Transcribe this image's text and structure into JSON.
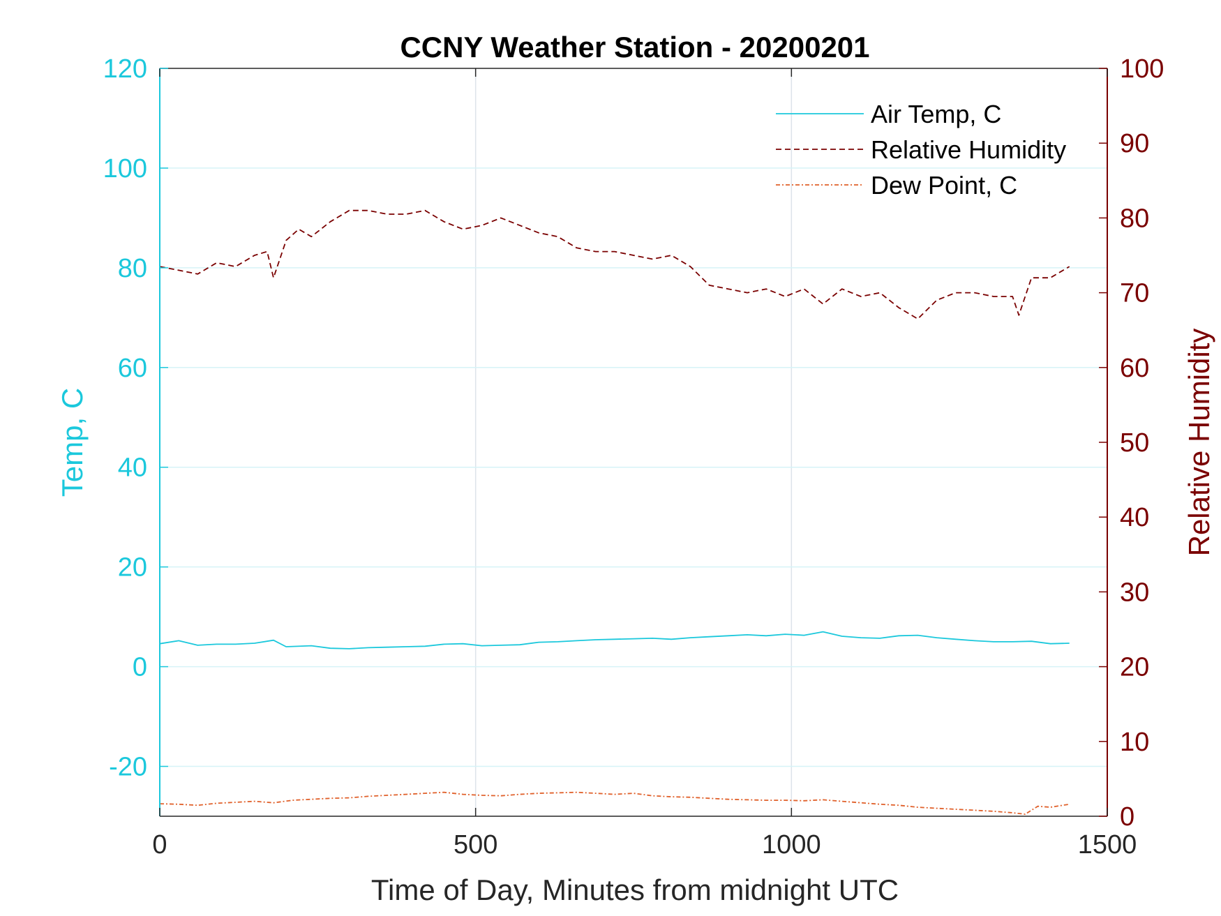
{
  "chart_data": {
    "type": "line",
    "title": "CCNY Weather Station - 20200201",
    "xlabel": "Time of Day, Minutes from midnight UTC",
    "ylabel_left": "Temp, C",
    "ylabel_right": "Relative Humidity",
    "xlim": [
      0,
      1500
    ],
    "ylim_left": [
      -30,
      120
    ],
    "ylim_right": [
      0,
      100
    ],
    "xticks": [
      0,
      500,
      1000,
      1500
    ],
    "yticks_left": [
      -20,
      0,
      20,
      40,
      60,
      80,
      100,
      120
    ],
    "yticks_right": [
      0,
      10,
      20,
      30,
      40,
      50,
      60,
      70,
      80,
      90,
      100
    ],
    "grid": true,
    "legend_position": "top-right",
    "colors": {
      "left_axis": "#1bc8dc",
      "right_axis": "#7a0000",
      "air_temp": "#1bc8dc",
      "humidity": "#7a0000",
      "dew_point": "#e0602a"
    },
    "series": [
      {
        "name": "Air Temp, C",
        "axis": "left",
        "style": "solid",
        "x": [
          0,
          30,
          60,
          90,
          120,
          150,
          180,
          200,
          240,
          270,
          300,
          330,
          360,
          390,
          420,
          450,
          480,
          510,
          540,
          570,
          600,
          630,
          660,
          690,
          720,
          750,
          780,
          810,
          840,
          870,
          900,
          930,
          960,
          990,
          1020,
          1050,
          1080,
          1110,
          1140,
          1170,
          1200,
          1230,
          1260,
          1290,
          1320,
          1350,
          1380,
          1410,
          1440
        ],
        "y": [
          4.6,
          5.2,
          4.3,
          4.5,
          4.5,
          4.7,
          5.3,
          4.0,
          4.2,
          3.7,
          3.6,
          3.8,
          3.9,
          4.0,
          4.1,
          4.5,
          4.6,
          4.2,
          4.3,
          4.4,
          4.9,
          5.0,
          5.2,
          5.4,
          5.5,
          5.6,
          5.7,
          5.5,
          5.8,
          6.0,
          6.2,
          6.4,
          6.2,
          6.5,
          6.3,
          7.0,
          6.1,
          5.8,
          5.7,
          6.2,
          6.3,
          5.8,
          5.5,
          5.2,
          5.0,
          5.0,
          5.1,
          4.6,
          4.7
        ]
      },
      {
        "name": "Relative Humidity",
        "axis": "right",
        "style": "dashed",
        "x": [
          0,
          30,
          60,
          90,
          120,
          150,
          170,
          180,
          200,
          220,
          240,
          270,
          300,
          330,
          360,
          390,
          420,
          450,
          480,
          510,
          540,
          570,
          600,
          630,
          660,
          690,
          720,
          750,
          780,
          810,
          840,
          870,
          900,
          930,
          960,
          990,
          1020,
          1050,
          1080,
          1110,
          1140,
          1170,
          1200,
          1230,
          1260,
          1290,
          1320,
          1350,
          1360,
          1380,
          1410,
          1440
        ],
        "y": [
          73.5,
          73.0,
          72.5,
          74.0,
          73.5,
          75.0,
          75.5,
          72.0,
          77.0,
          78.5,
          77.5,
          79.5,
          81.0,
          81.0,
          80.5,
          80.5,
          81.0,
          79.5,
          78.5,
          79.0,
          80.0,
          79.0,
          78.0,
          77.5,
          76.0,
          75.5,
          75.5,
          75.0,
          74.5,
          75.0,
          73.5,
          71.0,
          70.5,
          70.0,
          70.5,
          69.5,
          70.5,
          68.5,
          70.5,
          69.5,
          70.0,
          68.0,
          66.5,
          69.0,
          70.0,
          70.0,
          69.5,
          69.5,
          67.0,
          72.0,
          72.0,
          73.5
        ]
      },
      {
        "name": "Dew Point, C",
        "axis": "left",
        "style": "dash-dot",
        "x": [
          0,
          30,
          60,
          90,
          120,
          150,
          180,
          210,
          240,
          270,
          300,
          330,
          360,
          390,
          420,
          450,
          480,
          510,
          540,
          570,
          600,
          630,
          660,
          690,
          720,
          750,
          780,
          810,
          840,
          870,
          900,
          930,
          960,
          990,
          1020,
          1050,
          1080,
          1110,
          1140,
          1170,
          1200,
          1230,
          1260,
          1290,
          1320,
          1350,
          1370,
          1390,
          1410,
          1440
        ],
        "y": [
          -27.5,
          -27.6,
          -27.8,
          -27.4,
          -27.2,
          -27.0,
          -27.3,
          -26.8,
          -26.6,
          -26.4,
          -26.3,
          -26.0,
          -25.8,
          -25.6,
          -25.4,
          -25.2,
          -25.6,
          -25.8,
          -25.9,
          -25.6,
          -25.4,
          -25.3,
          -25.2,
          -25.4,
          -25.6,
          -25.4,
          -25.9,
          -26.1,
          -26.2,
          -26.4,
          -26.6,
          -26.7,
          -26.8,
          -26.8,
          -26.9,
          -26.7,
          -27.0,
          -27.3,
          -27.6,
          -27.8,
          -28.2,
          -28.4,
          -28.6,
          -28.8,
          -29.0,
          -29.3,
          -29.6,
          -28.0,
          -28.2,
          -27.6
        ]
      }
    ]
  }
}
